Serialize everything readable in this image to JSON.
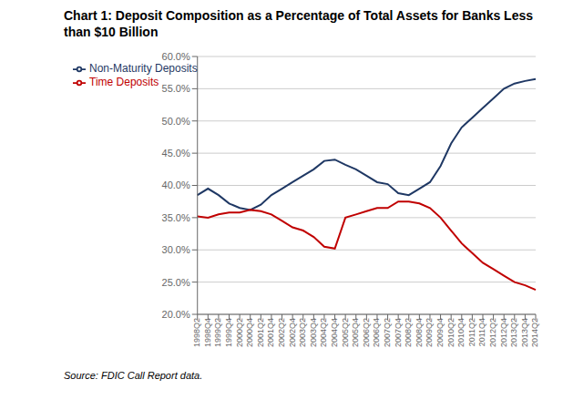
{
  "chart_data": {
    "type": "line",
    "title": "Chart 1: Deposit Composition as a Percentage of Total Assets for Banks Less than $10 Billion",
    "annotations": [
      "Source: FDIC Call Report data."
    ],
    "categories": [
      "1998Q2",
      "1998Q4",
      "1999Q2",
      "1999Q4",
      "2000Q2",
      "2000Q4",
      "2001Q2",
      "2001Q4",
      "2002Q2",
      "2002Q4",
      "2003Q2",
      "2003Q4",
      "2004Q2",
      "2004Q4",
      "2005Q2",
      "2005Q4",
      "2006Q2",
      "2006Q4",
      "2007Q2",
      "2007Q4",
      "2008Q2",
      "2008Q4",
      "2009Q2",
      "2009Q4",
      "2010Q2",
      "2010Q4",
      "2011Q2",
      "2011Q4",
      "2012Q2",
      "2012Q4",
      "2013Q2",
      "2013Q4",
      "2014Q2"
    ],
    "series": [
      {
        "name": "Non-Maturity Deposits",
        "color": "#1f3864",
        "values": [
          38.5,
          39.5,
          38.5,
          37.2,
          36.5,
          36.2,
          37.0,
          38.5,
          39.5,
          40.5,
          41.5,
          42.5,
          43.8,
          44.0,
          43.2,
          42.5,
          41.5,
          40.5,
          40.2,
          38.8,
          38.5,
          39.5,
          40.5,
          43.0,
          46.5,
          49.0,
          50.5,
          52.0,
          53.5,
          55.0,
          55.8,
          56.2,
          56.5
        ]
      },
      {
        "name": "Time Deposits",
        "color": "#c00000",
        "values": [
          35.2,
          35.0,
          35.5,
          35.8,
          35.8,
          36.2,
          36.0,
          35.5,
          34.5,
          33.5,
          33.0,
          32.0,
          30.5,
          30.2,
          35.0,
          35.5,
          36.0,
          36.5,
          36.5,
          37.5,
          37.5,
          37.2,
          36.5,
          35.0,
          33.0,
          31.0,
          29.5,
          28.0,
          27.0,
          26.0,
          25.0,
          24.5,
          23.8
        ]
      }
    ],
    "ylim": [
      20.0,
      60.0
    ],
    "yticks": [
      {
        "value": 20.0,
        "label": "20.0%"
      },
      {
        "value": 25.0,
        "label": "25.0%"
      },
      {
        "value": 30.0,
        "label": "30.0%"
      },
      {
        "value": 35.0,
        "label": "35.0%"
      },
      {
        "value": 40.0,
        "label": "40.0%"
      },
      {
        "value": 45.0,
        "label": "45.0%"
      },
      {
        "value": 50.0,
        "label": "50.0%"
      },
      {
        "value": 55.0,
        "label": "55.0%"
      },
      {
        "value": 60.0,
        "label": "60.0%"
      }
    ],
    "grid": true,
    "legend": "upper left"
  }
}
